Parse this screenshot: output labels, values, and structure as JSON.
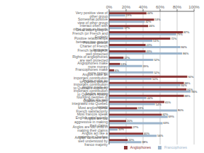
{
  "chart_data": {
    "type": "bar",
    "orientation": "horizontal",
    "categories": [
      "Very positive view of other group",
      "Somewhat positive view of other group",
      "Interact often with other group as friends",
      "Greet other group in French (or French and English)",
      "Positive relationships between two groups",
      "Positive view of Charter of French language",
      "French language is well protected",
      "Rights of anglophones are well protected",
      "Anglophones make more money",
      "Francophones make more money",
      "Anglos make an important contribution to Quebec culture",
      "Anglos make an important contribution to Quebec's economy",
      "Anglos made an important contribution to Quebec's history",
      "Anglos among founding peoples of Quebec society",
      "Anglos are well integrated into Quebec society",
      "Most anglos speak French satisfactorily",
      "Most francos speak English satisfactorily",
      "Anglos are too aggressive in making their claims",
      "Anglos are too timid in making their claims",
      "Anglos act like a majority in Quebec",
      "Anglos' concerns are well understood by franco majority"
    ],
    "series": [
      {
        "name": "Anglophones",
        "color": "#8B3535",
        "values": [
          44,
          53,
          46,
          87,
          72,
          43,
          43,
          17,
          13,
          6,
          92,
          88,
          91,
          88,
          65,
          33,
          62,
          20,
          27,
          40,
          22
        ],
        "value_labels": [
          "44%",
          "53%",
          "46%",
          "87%",
          "72%",
          "43%",
          "43%",
          "17%",
          "13%",
          "6%",
          "92%",
          "88%",
          "91%",
          "88%",
          "65%",
          "33%",
          "62%",
          "20%",
          "27%",
          "40%",
          "22%"
        ]
      },
      {
        "name": "Francophones",
        "color": "#9DB5CC",
        "values": [
          19,
          42,
          17,
          79,
          51,
          84,
          86,
          52,
          39,
          52,
          50,
          84,
          96,
          44,
          54,
          80,
          69,
          63,
          10,
          56,
          38
        ],
        "value_labels": [
          "19%",
          "42%",
          "17%",
          "79%",
          "51%",
          "84%",
          "86%",
          "52%",
          "39%",
          "52%",
          "50%",
          "84%",
          "96%",
          "44%",
          "54%",
          "80%",
          "69%",
          "63%",
          "10%",
          "56%",
          "38%"
        ]
      }
    ],
    "xlim": [
      0,
      100
    ],
    "xticks": [
      {
        "value": 0,
        "label": "0%"
      },
      {
        "value": 20,
        "label": "20%"
      },
      {
        "value": 40,
        "label": "40%"
      },
      {
        "value": 60,
        "label": "60%"
      },
      {
        "value": 80,
        "label": "80%"
      },
      {
        "value": 100,
        "label": "100%"
      }
    ],
    "grid": true,
    "legend": "lower right",
    "data_labels": true
  }
}
